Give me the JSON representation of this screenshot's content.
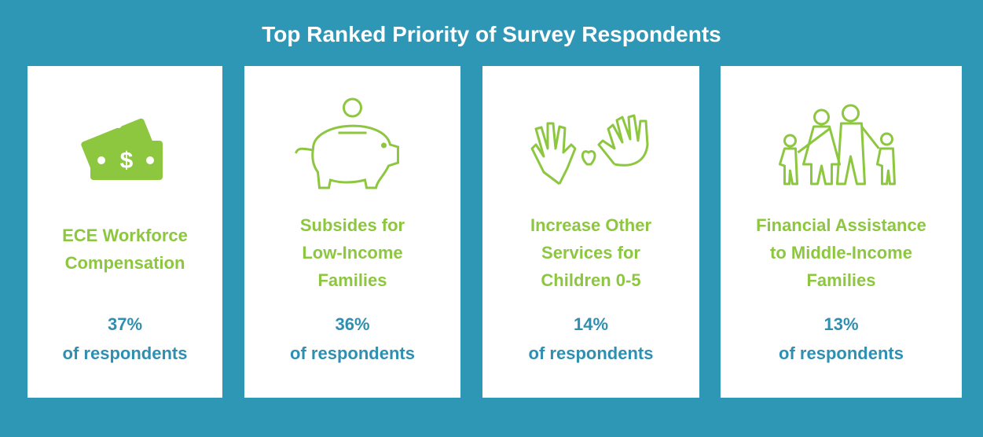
{
  "title": "Top Ranked Priority of Survey Respondents",
  "cards": [
    {
      "label": [
        "ECE Workforce",
        "Compensation"
      ],
      "percent": "37%",
      "caption": "of respondents"
    },
    {
      "label": [
        "Subsides for",
        "Low-Income",
        "Families"
      ],
      "percent": "36%",
      "caption": "of respondents"
    },
    {
      "label": [
        "Increase Other",
        "Services for",
        "Children 0-5"
      ],
      "percent": "14%",
      "caption": "of respondents"
    },
    {
      "label": [
        "Financial Assistance",
        "to Middle-Income",
        "Families"
      ],
      "percent": "13%",
      "caption": "of respondents"
    }
  ]
}
